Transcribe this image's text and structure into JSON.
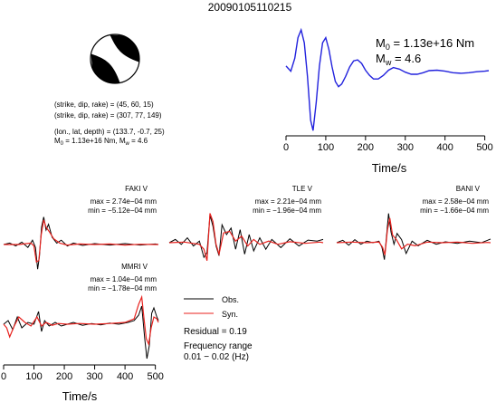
{
  "event_id": "20090105110215",
  "focal": {
    "nodal_plane_1": "(strike, dip, rake) = (45, 60, 15)",
    "nodal_plane_2": "(strike, dip, rake) = (307, 77, 149)",
    "location": "(lon., lat, depth) = (133.7, -0.7, 25)",
    "m0_text": "M",
    "m0_sub": "0",
    "m0_value": " = 1.13e+16 Nm, M",
    "mw_sub": "w",
    "mw_value": " = 4.6"
  },
  "stf": {
    "m0_label": "M",
    "m0_sub": "0",
    "m0_value": " = 1.13e+16 Nm",
    "mw_label": "M",
    "mw_sub": "w",
    "mw_value": " = 4.6"
  },
  "legend": {
    "obs_label": "Obs.",
    "syn_label": "Syn.",
    "residual": "Residual = 0.19",
    "freq_title": "Frequency range",
    "freq_value": "0.01 − 0.02 (Hz)"
  },
  "colors": {
    "obs": "#000000",
    "syn": "#e8221e",
    "stf": "#2222dd",
    "beachball_fill": "#000000"
  },
  "chart_data": [
    {
      "type": "line",
      "name": "source-time-function",
      "xlabel": "Time/s",
      "xlim": [
        0,
        510
      ],
      "xticks": [
        0,
        100,
        200,
        300,
        400,
        500
      ],
      "series": [
        {
          "x": [
            0,
            12,
            22,
            30,
            38,
            46,
            54,
            62,
            68,
            76,
            84,
            92,
            100,
            108,
            116,
            124,
            132,
            140,
            150,
            160,
            170,
            180,
            190,
            200,
            210,
            220,
            232,
            245,
            258,
            270,
            285,
            300,
            315,
            330,
            345,
            360,
            380,
            400,
            420,
            440,
            460,
            480,
            500,
            510
          ],
          "y": [
            0.3,
            0.2,
            0.45,
            0.85,
            1.0,
            0.75,
            0.1,
            -0.75,
            -0.95,
            -0.4,
            0.3,
            0.75,
            0.85,
            0.62,
            0.28,
            0.0,
            -0.1,
            -0.05,
            0.1,
            0.28,
            0.4,
            0.42,
            0.35,
            0.22,
            0.12,
            0.05,
            0.05,
            0.12,
            0.22,
            0.27,
            0.24,
            0.18,
            0.14,
            0.14,
            0.17,
            0.21,
            0.22,
            0.2,
            0.17,
            0.16,
            0.17,
            0.19,
            0.2,
            0.21
          ]
        }
      ]
    },
    {
      "type": "line",
      "station": "FAKI V",
      "max": "max = 2.74e−04 mm",
      "min": "min = −5.12e−04 mm",
      "series": [
        {
          "name": "Obs.",
          "x": [
            0,
            20,
            40,
            60,
            80,
            95,
            105,
            112,
            118,
            125,
            132,
            140,
            148,
            160,
            175,
            190,
            210,
            230,
            260,
            300,
            350,
            400,
            450,
            500,
            510
          ],
          "y": [
            0.0,
            0.05,
            -0.05,
            0.08,
            -0.1,
            0.15,
            -0.1,
            -0.85,
            -0.4,
            0.6,
            0.95,
            0.5,
            0.7,
            0.25,
            0.05,
            0.15,
            -0.05,
            0.05,
            -0.03,
            0.03,
            -0.02,
            0.03,
            -0.02,
            0.02,
            0.0
          ]
        },
        {
          "name": "Syn.",
          "x": [
            0,
            50,
            90,
            100,
            108,
            116,
            124,
            132,
            140,
            150,
            165,
            185,
            210,
            250,
            300,
            350,
            400,
            450,
            500,
            510
          ],
          "y": [
            0.0,
            0.0,
            0.05,
            -0.05,
            -0.6,
            -0.55,
            0.35,
            0.85,
            0.6,
            0.45,
            0.2,
            0.05,
            -0.02,
            0.02,
            0.0,
            0.02,
            -0.02,
            0.01,
            0.0,
            0.0
          ]
        }
      ]
    },
    {
      "type": "line",
      "station": "TLE V",
      "max": "max = 2.21e−04 mm",
      "min": "min = −1.96e−04 mm",
      "series": [
        {
          "name": "Obs.",
          "x": [
            0,
            20,
            40,
            60,
            80,
            100,
            115,
            125,
            135,
            145,
            155,
            165,
            175,
            190,
            205,
            220,
            235,
            250,
            265,
            280,
            300,
            320,
            340,
            370,
            400,
            430,
            460,
            490,
            510
          ],
          "y": [
            0.0,
            0.1,
            -0.05,
            0.15,
            -0.1,
            0.05,
            -0.45,
            -0.3,
            0.85,
            0.5,
            -0.1,
            -0.4,
            0.55,
            0.25,
            0.45,
            -0.2,
            0.4,
            -0.35,
            0.25,
            -0.25,
            0.15,
            -0.2,
            0.1,
            -0.15,
            0.12,
            -0.1,
            0.08,
            0.05,
            0.1
          ]
        },
        {
          "name": "Syn.",
          "x": [
            0,
            50,
            100,
            115,
            125,
            135,
            145,
            155,
            165,
            180,
            200,
            220,
            240,
            260,
            280,
            300,
            330,
            360,
            400,
            450,
            500,
            510
          ],
          "y": [
            0.0,
            0.02,
            -0.05,
            -0.2,
            -0.55,
            0.9,
            0.65,
            -0.05,
            -0.35,
            0.3,
            0.35,
            0.05,
            0.2,
            -0.1,
            0.1,
            -0.05,
            0.05,
            -0.05,
            0.03,
            -0.02,
            0.02,
            0.0
          ]
        }
      ]
    },
    {
      "type": "line",
      "station": "BANI V",
      "max": "max = 2.58e−04 mm",
      "min": "min = −1.66e−04 mm",
      "series": [
        {
          "name": "Obs.",
          "x": [
            0,
            20,
            40,
            60,
            80,
            100,
            120,
            140,
            150,
            158,
            165,
            172,
            180,
            190,
            200,
            215,
            230,
            250,
            270,
            300,
            330,
            360,
            400,
            440,
            480,
            500,
            510
          ],
          "y": [
            0.0,
            0.08,
            -0.08,
            0.1,
            -0.05,
            0.05,
            0.0,
            0.05,
            -0.15,
            -0.55,
            0.2,
            0.95,
            0.35,
            -0.05,
            0.3,
            0.1,
            -0.35,
            0.05,
            -0.1,
            0.08,
            -0.05,
            0.03,
            -0.02,
            0.05,
            0.0,
            0.08,
            0.12
          ]
        },
        {
          "name": "Syn.",
          "x": [
            0,
            50,
            100,
            140,
            152,
            160,
            168,
            176,
            185,
            198,
            215,
            235,
            260,
            300,
            350,
            400,
            450,
            500,
            510
          ],
          "y": [
            0.0,
            0.02,
            0.0,
            0.02,
            -0.15,
            -0.4,
            0.4,
            0.8,
            0.25,
            0.1,
            -0.2,
            -0.05,
            -0.1,
            0.02,
            0.0,
            0.02,
            -0.02,
            0.01,
            0.0
          ]
        }
      ]
    },
    {
      "type": "line",
      "station": "MMRI V",
      "max": "max = 1.04e−04 mm",
      "min": "min = −1.78e−04 mm",
      "xlabel": "Time/s",
      "xlim": [
        0,
        510
      ],
      "xticks": [
        0,
        100,
        200,
        300,
        400,
        500
      ],
      "series": [
        {
          "name": "Obs.",
          "x": [
            0,
            15,
            30,
            45,
            60,
            80,
            100,
            115,
            125,
            135,
            150,
            170,
            190,
            210,
            230,
            260,
            290,
            320,
            350,
            380,
            410,
            430,
            445,
            455,
            465,
            472,
            480,
            488,
            495,
            505,
            510
          ],
          "y": [
            0.0,
            0.1,
            -0.15,
            0.2,
            -0.1,
            0.05,
            0.0,
            0.35,
            -0.2,
            0.1,
            -0.05,
            0.05,
            -0.05,
            0.0,
            0.05,
            -0.03,
            0.02,
            -0.02,
            0.03,
            0.0,
            0.05,
            0.1,
            0.25,
            0.5,
            -0.4,
            -0.95,
            -0.6,
            0.3,
            0.45,
            0.2,
            0.1
          ]
        },
        {
          "name": "Syn.",
          "x": [
            0,
            10,
            20,
            35,
            50,
            70,
            90,
            110,
            125,
            140,
            160,
            180,
            210,
            250,
            300,
            350,
            400,
            430,
            445,
            455,
            462,
            470,
            478,
            486,
            495,
            505,
            510
          ],
          "y": [
            0.0,
            -0.1,
            -0.35,
            -0.05,
            0.2,
            0.05,
            -0.05,
            0.2,
            -0.05,
            0.05,
            -0.03,
            0.02,
            0.0,
            0.02,
            0.0,
            0.02,
            0.05,
            0.15,
            0.55,
            0.75,
            0.2,
            -0.4,
            -0.55,
            -0.1,
            0.2,
            0.15,
            0.05
          ]
        }
      ]
    }
  ]
}
